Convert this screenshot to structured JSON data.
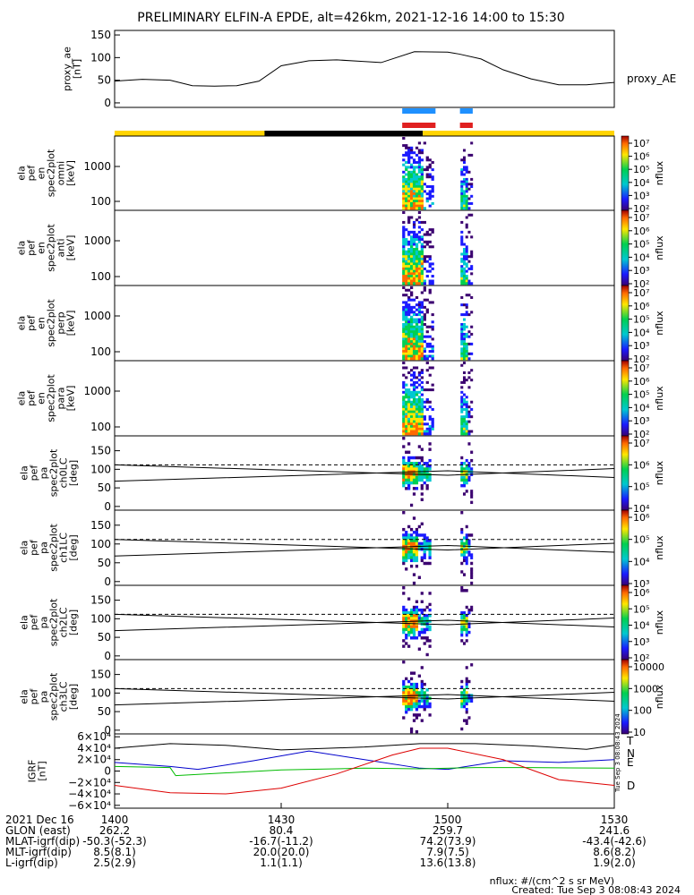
{
  "title": "PRELIMINARY ELFIN-A EPDE, alt=426km, 2021-12-16 14:00 to 15:30",
  "chart_data": [
    {
      "id": "proxy_ae",
      "type": "line",
      "ylabel": [
        "proxy_ae",
        "[nT]"
      ],
      "legend": "proxy_AE",
      "yticks": [
        "150",
        "100",
        "50",
        "0"
      ],
      "ytick_values": [
        150,
        100,
        50,
        0
      ],
      "ylim": [
        -10,
        160
      ],
      "x_minutes": [
        0,
        5,
        10,
        14,
        18,
        22,
        26,
        30,
        35,
        40,
        44,
        48,
        54,
        60,
        62,
        66,
        70,
        75,
        80,
        85,
        89,
        90
      ],
      "y": [
        48,
        52,
        50,
        38,
        37,
        38,
        48,
        82,
        93,
        95,
        92,
        89,
        113,
        112,
        108,
        97,
        73,
        53,
        40,
        40,
        44,
        45
      ]
    },
    {
      "id": "science_zones",
      "type": "bar",
      "categories": [
        "blue-1",
        "blue-2",
        "red-1",
        "red-2"
      ],
      "x_start_minutes": [
        51.8,
        62.2,
        51.8,
        62.2
      ],
      "x_end_minutes": [
        57.8,
        64.5,
        57.8,
        64.5
      ],
      "colors": [
        "#1e90ff",
        "#1e90ff",
        "#e02020",
        "#e02020"
      ]
    },
    {
      "id": "orbit_bar",
      "type": "bar",
      "segments": [
        {
          "start": 0,
          "end": 27,
          "color": "#ffd400"
        },
        {
          "start": 27,
          "end": 55.5,
          "color": "#000000"
        },
        {
          "start": 55.5,
          "end": 90,
          "color": "#ffd400"
        }
      ]
    },
    {
      "id": "en_omni",
      "type": "heatmap",
      "ylabel": [
        "ela",
        "pef",
        "en",
        "spec2plot",
        "omni",
        "[keV]"
      ],
      "yticks": [
        "1000",
        "100"
      ],
      "cb_label": "nflux",
      "cb_ticks": [
        "10⁷",
        "10⁶",
        "10⁵",
        "10⁴",
        "10³",
        "10²"
      ],
      "bursts": [
        {
          "x_start": 51.8,
          "x_end": 57.5
        },
        {
          "x_start": 62.3,
          "x_end": 64.5
        }
      ]
    },
    {
      "id": "en_anti",
      "type": "heatmap",
      "ylabel": [
        "ela",
        "pef",
        "en",
        "spec2plot",
        "anti",
        "[keV]"
      ],
      "yticks": [
        "1000",
        "100"
      ],
      "cb_label": "nflux",
      "cb_ticks": [
        "10⁷",
        "10⁶",
        "10⁵",
        "10⁴",
        "10³",
        "10²"
      ],
      "bursts": [
        {
          "x_start": 51.8,
          "x_end": 57.5
        },
        {
          "x_start": 62.3,
          "x_end": 64.5
        }
      ]
    },
    {
      "id": "en_perp",
      "type": "heatmap",
      "ylabel": [
        "ela",
        "pef",
        "en",
        "spec2plot",
        "perp",
        "[keV]"
      ],
      "yticks": [
        "1000",
        "100"
      ],
      "cb_label": "nflux",
      "cb_ticks": [
        "10⁷",
        "10⁶",
        "10⁵",
        "10⁴",
        "10³",
        "10²"
      ],
      "bursts": [
        {
          "x_start": 51.8,
          "x_end": 57.5
        },
        {
          "x_start": 62.3,
          "x_end": 64.5
        }
      ]
    },
    {
      "id": "en_para",
      "type": "heatmap",
      "ylabel": [
        "ela",
        "pef",
        "en",
        "spec2plot",
        "para",
        "[keV]"
      ],
      "yticks": [
        "1000",
        "100"
      ],
      "cb_label": "nflux",
      "cb_ticks": [
        "10⁷",
        "10⁶",
        "10⁵",
        "10⁴",
        "10³",
        "10²"
      ],
      "bursts": [
        {
          "x_start": 51.8,
          "x_end": 57.5
        },
        {
          "x_start": 62.3,
          "x_end": 64.5
        }
      ]
    },
    {
      "id": "pa_ch0",
      "type": "heatmap",
      "ylabel": [
        "ela",
        "pef",
        "pa",
        "spec2plot",
        "ch0LC",
        "[deg]"
      ],
      "yticks": [
        "150",
        "100",
        "50",
        "0"
      ],
      "ytick_values": [
        150,
        100,
        50,
        0
      ],
      "ylim": [
        -10,
        190
      ],
      "cb_label": "nflux",
      "cb_ticks": [
        "10⁷",
        "10⁶",
        "10⁵",
        "10⁴"
      ],
      "bursts": [
        {
          "x_start": 51.8,
          "x_end": 57.0
        },
        {
          "x_start": 62.3,
          "x_end": 64.5
        }
      ]
    },
    {
      "id": "pa_ch1",
      "type": "heatmap",
      "ylabel": [
        "ela",
        "pef",
        "pa",
        "spec2plot",
        "ch1LC",
        "[deg]"
      ],
      "yticks": [
        "150",
        "100",
        "50",
        "0"
      ],
      "ytick_values": [
        150,
        100,
        50,
        0
      ],
      "ylim": [
        -10,
        190
      ],
      "cb_label": "nflux",
      "cb_ticks": [
        "10⁶",
        "10⁵",
        "10⁴",
        "10³"
      ],
      "bursts": [
        {
          "x_start": 51.8,
          "x_end": 57.0
        },
        {
          "x_start": 62.3,
          "x_end": 64.5
        }
      ]
    },
    {
      "id": "pa_ch2",
      "type": "heatmap",
      "ylabel": [
        "ela",
        "pef",
        "pa",
        "spec2plot",
        "ch2LC",
        "[deg]"
      ],
      "yticks": [
        "150",
        "100",
        "50",
        "0"
      ],
      "ytick_values": [
        150,
        100,
        50,
        0
      ],
      "ylim": [
        -10,
        190
      ],
      "cb_label": "nflux",
      "cb_ticks": [
        "10⁶",
        "10⁵",
        "10⁴",
        "10³",
        "10²"
      ],
      "bursts": [
        {
          "x_start": 51.8,
          "x_end": 57.0
        },
        {
          "x_start": 62.3,
          "x_end": 64.5
        }
      ]
    },
    {
      "id": "pa_ch3",
      "type": "heatmap",
      "ylabel": [
        "ela",
        "pef",
        "pa",
        "spec2plot",
        "ch3LC",
        "[deg]"
      ],
      "yticks": [
        "150",
        "100",
        "50",
        "0"
      ],
      "ytick_values": [
        150,
        100,
        50,
        0
      ],
      "ylim": [
        -10,
        190
      ],
      "cb_label": "nflux",
      "cb_ticks": [
        "10000",
        "1000",
        "100",
        "10"
      ],
      "bursts": [
        {
          "x_start": 51.8,
          "x_end": 57.0
        },
        {
          "x_start": 62.3,
          "x_end": 64.5
        }
      ]
    },
    {
      "id": "igrf",
      "type": "line",
      "ylabel": [
        "IGRF",
        "[nT]"
      ],
      "yticks": [
        "6×10⁴",
        "4×10⁴",
        "2×10⁴",
        "0",
        "−2×10⁴",
        "−4×10⁴",
        "−6×10⁴"
      ],
      "ytick_values": [
        60000,
        40000,
        20000,
        0,
        -20000,
        -40000,
        -60000
      ],
      "ylim": [
        -65000,
        65000
      ],
      "series": [
        {
          "name": "T",
          "color": "#000000",
          "x": [
            0,
            10,
            20,
            30,
            45,
            55,
            65,
            75,
            85,
            90
          ],
          "y": [
            40000,
            48000,
            45000,
            37000,
            42000,
            48000,
            48000,
            44000,
            38000,
            45000
          ]
        },
        {
          "name": "N",
          "color": "#0000cc",
          "x": [
            0,
            10,
            15,
            25,
            35,
            45,
            55,
            60,
            70,
            80,
            90
          ],
          "y": [
            15000,
            8000,
            3000,
            18000,
            35000,
            20000,
            5000,
            3000,
            18000,
            15000,
            20000
          ]
        },
        {
          "name": "E",
          "color": "#00bb00",
          "x": [
            0,
            10,
            11,
            30,
            45,
            55,
            65,
            75,
            90
          ],
          "y": [
            8000,
            6000,
            -8000,
            2000,
            5000,
            4000,
            6000,
            6000,
            5000
          ]
        },
        {
          "name": "D",
          "color": "#dd0000",
          "x": [
            0,
            10,
            20,
            30,
            40,
            50,
            55,
            60,
            70,
            80,
            90
          ],
          "y": [
            -25000,
            -38000,
            -40000,
            -30000,
            -5000,
            28000,
            40000,
            40000,
            20000,
            -15000,
            -25000
          ]
        }
      ]
    }
  ],
  "xaxis": {
    "tick_minutes": [
      0,
      30,
      60,
      90
    ],
    "rows": [
      {
        "label": "2021 Dec 16",
        "values": [
          "1400",
          "1430",
          "1500",
          "1530"
        ]
      },
      {
        "label": "GLON (east)",
        "values": [
          "262.2",
          "80.4",
          "259.7",
          "241.6"
        ]
      },
      {
        "label": "MLAT-igrf(dip)",
        "values": [
          "-50.3(-52.3)",
          "-16.7(-11.2)",
          "74.2(73.9)",
          "-43.4(-42.6)"
        ]
      },
      {
        "label": "MLT-igrf(dip)",
        "values": [
          "8.5(8.1)",
          "20.0(20.0)",
          "7.9(7.5)",
          "8.6(8.2)"
        ]
      },
      {
        "label": "L-igrf(dip)",
        "values": [
          "2.5(2.9)",
          "1.1(1.1)",
          "13.6(13.8)",
          "1.9(2.0)"
        ]
      }
    ]
  },
  "footer": {
    "units": "nflux: #/(cm^2 s sr MeV)",
    "created": "Created: Tue Sep  3 08:08:43 2024",
    "side_stamp": "Tue Sep  3 08:08:43 2024"
  }
}
